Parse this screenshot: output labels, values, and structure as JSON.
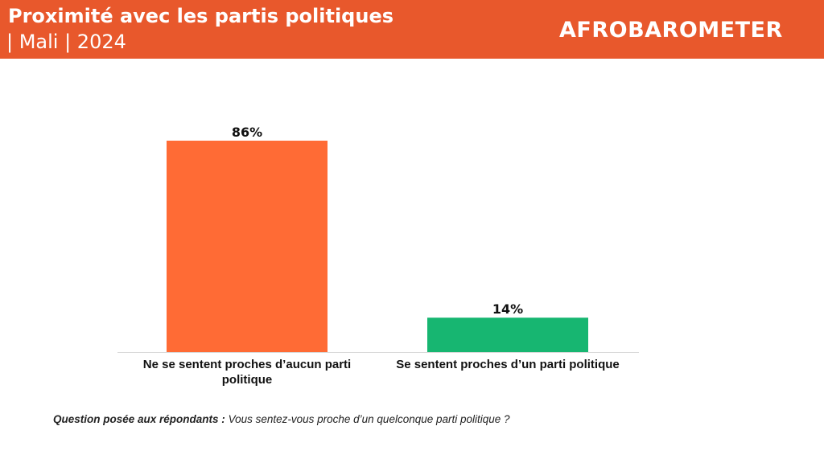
{
  "header": {
    "title": "Proximité avec les partis politiques",
    "subtitle": "| Mali | 2024",
    "logo_text": "AFROBAROMETER",
    "background_color": "#E8582C"
  },
  "chart_data": {
    "type": "bar",
    "categories": [
      "Ne se sentent proches d’aucun parti politique",
      "Se sentent proches d’un parti politique"
    ],
    "values": [
      86,
      14
    ],
    "data_labels": [
      "86%",
      "14%"
    ],
    "colors": [
      "#FF6B35",
      "#17B671"
    ],
    "ylim": [
      0,
      100
    ],
    "grid": false,
    "legend": "none"
  },
  "note": {
    "question_label": "Question posée aux répondants :",
    "question_text": "Vous sentez-vous proche d’un quelconque parti politique ?"
  }
}
